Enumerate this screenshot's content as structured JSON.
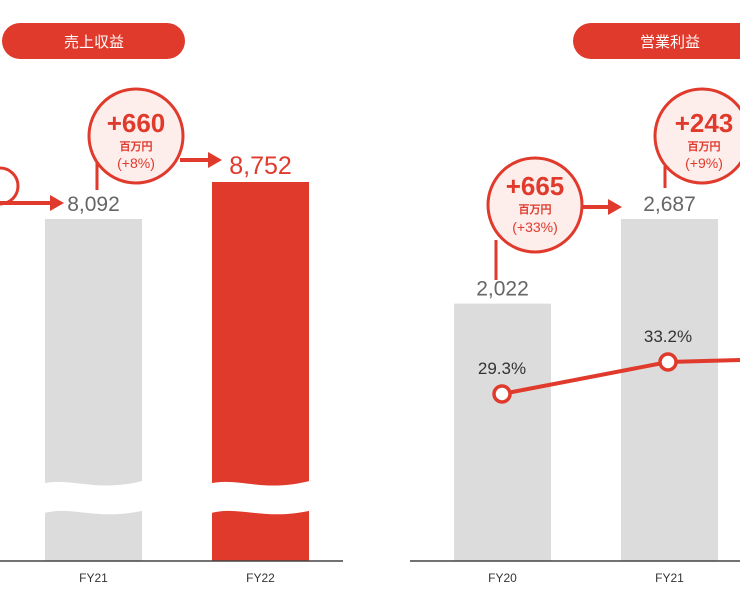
{
  "colors": {
    "accent": "#E03A2C",
    "bar_gray": "#DCDCDC",
    "bubble_fill": "#FDEDEB",
    "value_gray": "#666666",
    "axis": "#444444"
  },
  "chart_data": [
    {
      "type": "bar",
      "title": "売上収益",
      "categories": [
        "FY21",
        "FY22"
      ],
      "values": [
        8092,
        8752
      ],
      "value_labels": [
        "8,092",
        "8,752"
      ],
      "highlight": "FY22",
      "axis_break": true,
      "change_callouts": [
        {
          "amount": "+660",
          "unit": "百万円",
          "percent": "(+8%)"
        }
      ]
    },
    {
      "type": "bar",
      "title": "営業利益",
      "categories": [
        "FY20",
        "FY21"
      ],
      "values": [
        2022,
        2687
      ],
      "value_labels": [
        "2,022",
        "2,687"
      ],
      "margin_series": {
        "values": [
          29.3,
          33.2
        ],
        "labels": [
          "29.3%",
          "33.2%"
        ]
      },
      "change_callouts": [
        {
          "amount": "+665",
          "unit": "百万円",
          "percent": "(+33%)"
        },
        {
          "amount": "+243",
          "unit": "百万円",
          "percent": "(+9%)"
        }
      ]
    }
  ]
}
